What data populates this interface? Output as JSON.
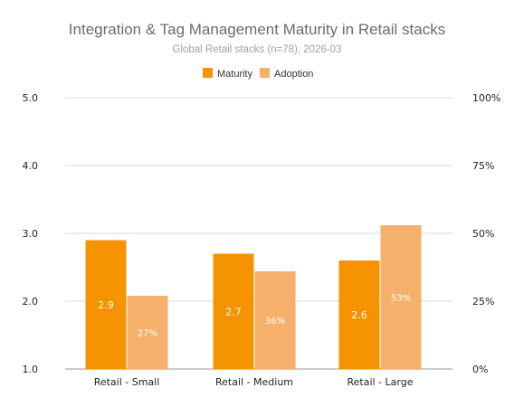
{
  "chart_data": {
    "type": "bar",
    "title": "Integration & Tag Management Maturity in Retail stacks",
    "subtitle": "Global Retail stacks (n=78), 2026-03",
    "categories": [
      "Retail - Small",
      "Retail - Medium",
      "Retail - Large"
    ],
    "series": [
      {
        "name": "Maturity",
        "axis": "left",
        "values": [
          2.9,
          2.7,
          2.6
        ],
        "labels": [
          "2.9",
          "2.7",
          "2.6"
        ],
        "color": "#F59300"
      },
      {
        "name": "Adoption",
        "axis": "right",
        "values": [
          27,
          36,
          53
        ],
        "labels": [
          "27%",
          "36%",
          "53%"
        ],
        "color": "#F5B06B"
      }
    ],
    "y_left": {
      "min": 1.0,
      "max": 5.0,
      "ticks": [
        "1.0",
        "2.0",
        "3.0",
        "4.0",
        "5.0"
      ]
    },
    "y_right": {
      "min": 0,
      "max": 100,
      "ticks": [
        "0%",
        "25%",
        "50%",
        "75%",
        "100%"
      ]
    },
    "grid": true,
    "legend": "top-center"
  }
}
